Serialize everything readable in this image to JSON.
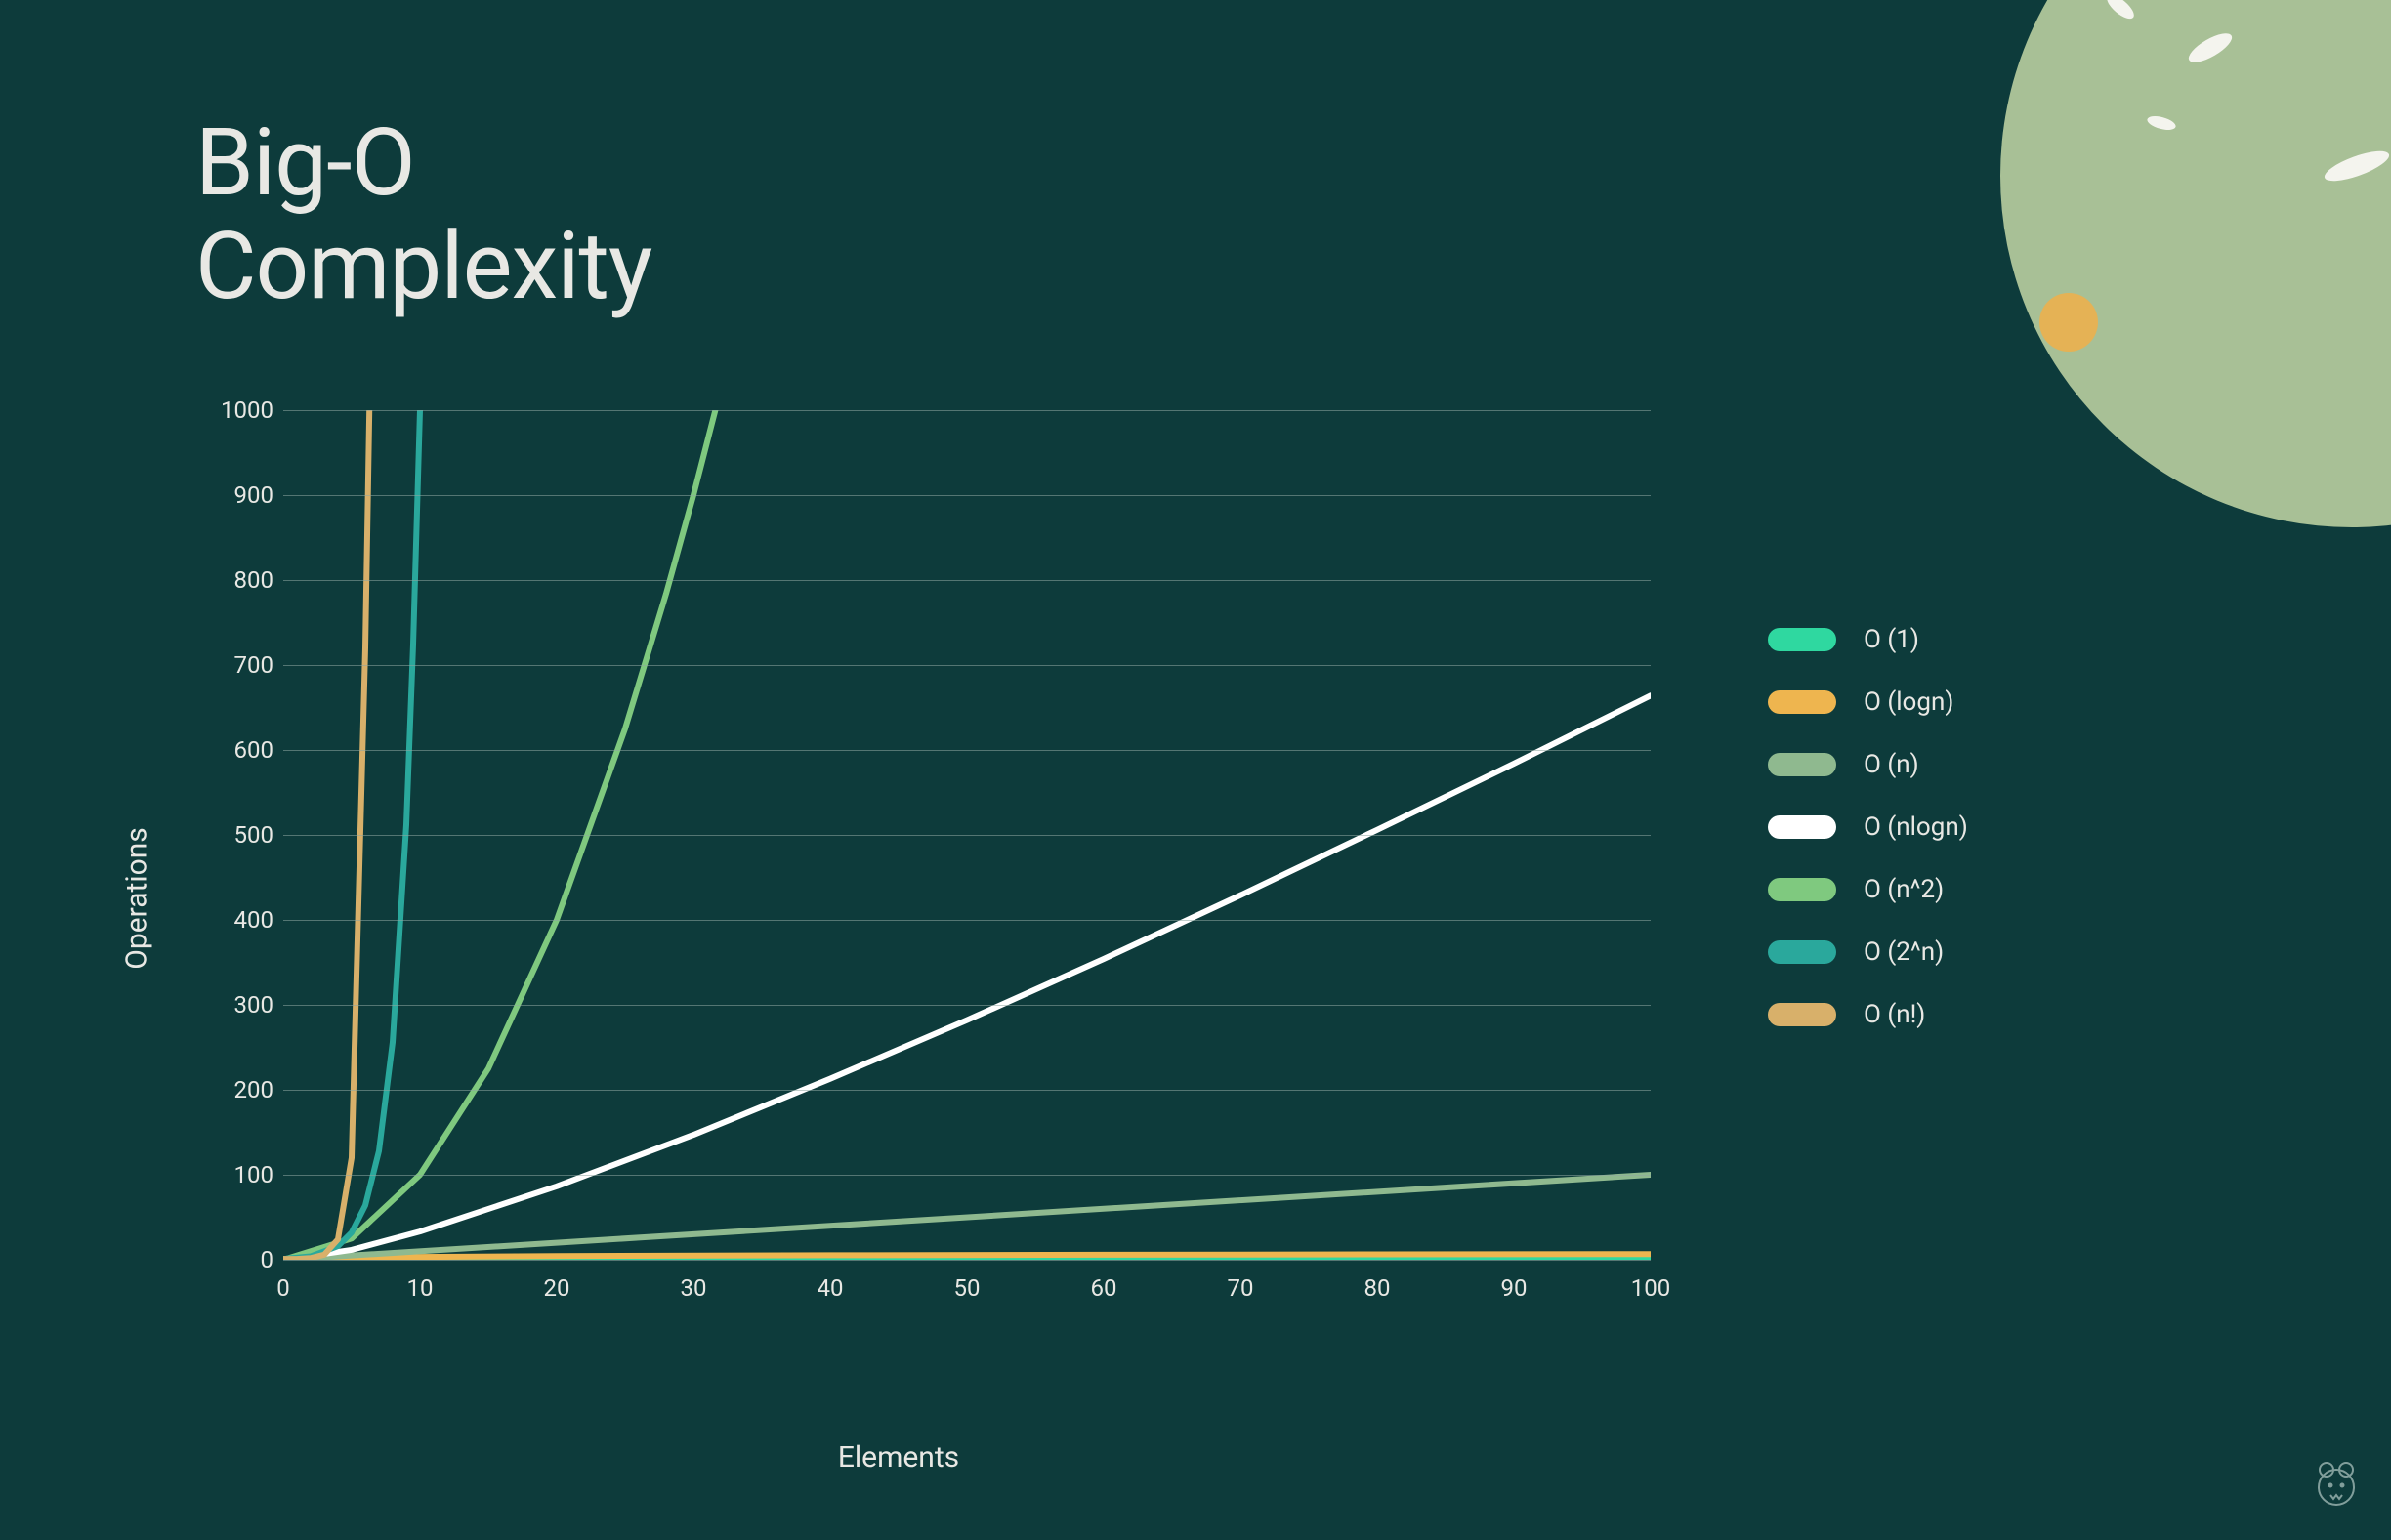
{
  "title_line1": "Big-O",
  "title_line2": "Complexity",
  "chart": {
    "type": "line",
    "xlabel": "Elements",
    "ylabel": "Operations",
    "label_fontsize": 30,
    "tick_fontsize": 24,
    "background_color": "#0d3b3b",
    "grid_color": "#8fa8a3",
    "text_color": "#e8e8e4",
    "line_width": 6,
    "xlim": [
      0,
      100
    ],
    "ylim": [
      0,
      1000
    ],
    "xtick_step": 10,
    "ytick_step": 100,
    "xticks": [
      "0",
      "10",
      "20",
      "30",
      "40",
      "50",
      "60",
      "70",
      "80",
      "90",
      "100"
    ],
    "yticks": [
      "0",
      "100",
      "200",
      "300",
      "400",
      "500",
      "600",
      "700",
      "800",
      "900",
      "1000"
    ],
    "series": [
      {
        "id": "o1",
        "label": "O (1)",
        "color": "#2fd8a0",
        "points": [
          [
            0,
            1
          ],
          [
            100,
            1
          ]
        ]
      },
      {
        "id": "ologn",
        "label": "O (logn)",
        "color": "#eeb54f",
        "points": [
          [
            0,
            0
          ],
          [
            1,
            0
          ],
          [
            2,
            1
          ],
          [
            5,
            2.3
          ],
          [
            10,
            3.3
          ],
          [
            20,
            4.3
          ],
          [
            40,
            5.3
          ],
          [
            60,
            5.9
          ],
          [
            80,
            6.3
          ],
          [
            100,
            6.6
          ]
        ]
      },
      {
        "id": "on",
        "label": "O (n)",
        "color": "#8fb98f",
        "points": [
          [
            0,
            0
          ],
          [
            100,
            100
          ]
        ]
      },
      {
        "id": "onlogn",
        "label": "O (nlogn)",
        "color": "#ffffff",
        "points": [
          [
            0,
            0
          ],
          [
            5,
            11.6
          ],
          [
            10,
            33.2
          ],
          [
            20,
            86.4
          ],
          [
            30,
            147
          ],
          [
            40,
            213
          ],
          [
            50,
            282
          ],
          [
            60,
            354
          ],
          [
            70,
            429
          ],
          [
            80,
            506
          ],
          [
            90,
            584
          ],
          [
            100,
            664
          ]
        ]
      },
      {
        "id": "on2",
        "label": "O (n^2)",
        "color": "#7fc97f",
        "points": [
          [
            0,
            0
          ],
          [
            5,
            25
          ],
          [
            10,
            100
          ],
          [
            15,
            225
          ],
          [
            20,
            400
          ],
          [
            25,
            625
          ],
          [
            28,
            784
          ],
          [
            30,
            900
          ],
          [
            31.6,
            1000
          ]
        ]
      },
      {
        "id": "o2n",
        "label": "O (2^n)",
        "color": "#2aa89c",
        "points": [
          [
            0,
            1
          ],
          [
            2,
            4
          ],
          [
            4,
            16
          ],
          [
            5,
            32
          ],
          [
            6,
            64
          ],
          [
            7,
            128
          ],
          [
            8,
            256
          ],
          [
            9,
            512
          ],
          [
            9.5,
            724
          ],
          [
            10,
            1000
          ]
        ]
      },
      {
        "id": "onfact",
        "label": "O (n!)",
        "color": "#d8b06a",
        "points": [
          [
            0,
            1
          ],
          [
            1,
            1
          ],
          [
            2,
            2
          ],
          [
            3,
            6
          ],
          [
            4,
            24
          ],
          [
            5,
            120
          ],
          [
            6,
            720
          ],
          [
            6.3,
            1000
          ]
        ]
      }
    ]
  },
  "decoration": {
    "blob_color": "#a8c096",
    "splash_color": "#e5b255",
    "fleck_color": "#f4f4ee"
  }
}
